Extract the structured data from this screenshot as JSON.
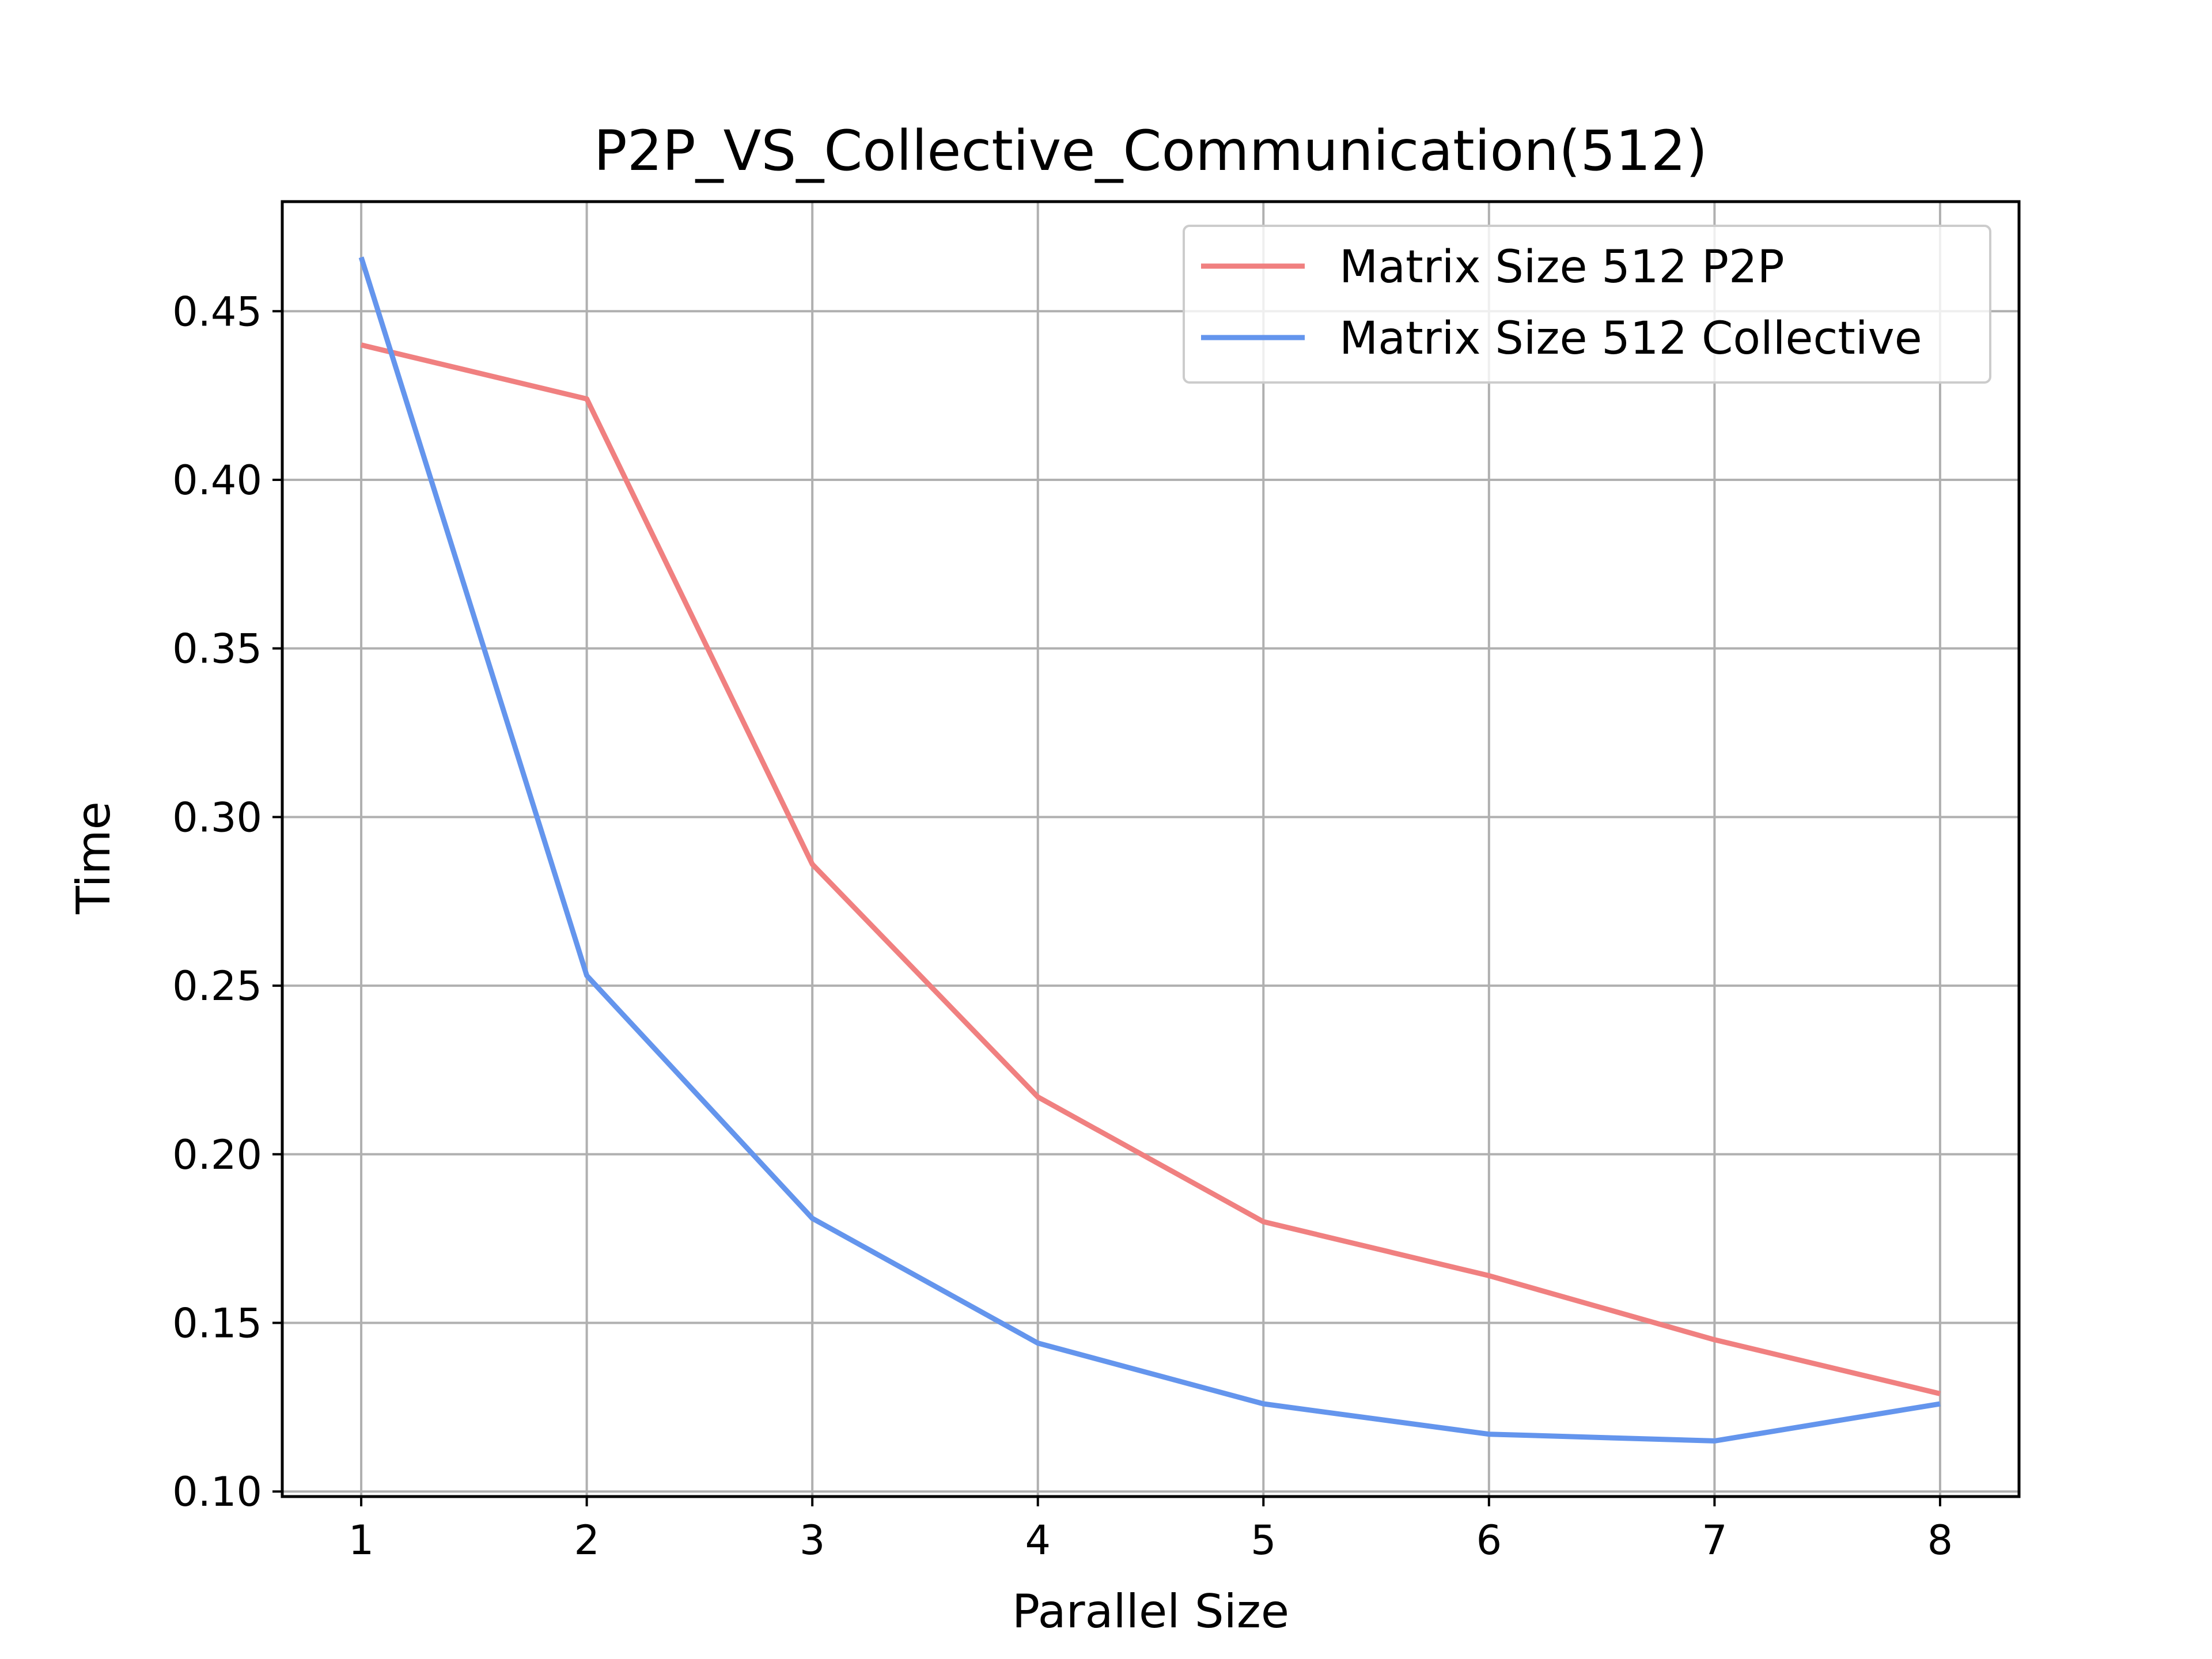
{
  "chart_data": {
    "type": "line",
    "title": "P2P_VS_Collective_Communication(512)",
    "xlabel": "Parallel Size",
    "ylabel": "Time",
    "x": [
      1,
      2,
      3,
      4,
      5,
      6,
      7,
      8
    ],
    "xticks": [
      "1",
      "2",
      "3",
      "4",
      "5",
      "6",
      "7",
      "8"
    ],
    "xlim": [
      0.65,
      8.35
    ],
    "yticks": [
      "0.10",
      "0.15",
      "0.20",
      "0.25",
      "0.30",
      "0.35",
      "0.40",
      "0.45"
    ],
    "ylim": [
      0.0985,
      0.4825
    ],
    "grid": true,
    "legend_position": "top-right",
    "series": [
      {
        "name": "Matrix Size 512 P2P",
        "color": "#f08080",
        "values": [
          0.44,
          0.424,
          0.286,
          0.217,
          0.18,
          0.164,
          0.145,
          0.129
        ]
      },
      {
        "name": "Matrix Size 512 Collective",
        "color": "#6495ed",
        "values": [
          0.466,
          0.253,
          0.181,
          0.144,
          0.126,
          0.117,
          0.115,
          0.126
        ]
      }
    ]
  }
}
